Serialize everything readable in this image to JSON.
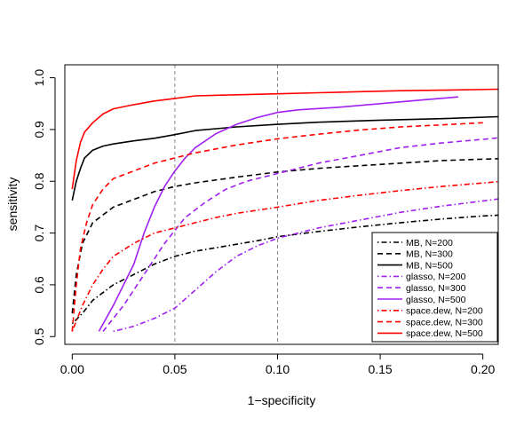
{
  "chart_data": {
    "type": "line",
    "title": "",
    "xlabel": "1−specificity",
    "ylabel": "sensitivity",
    "xlim": [
      -0.0036,
      0.2075
    ],
    "ylim": [
      0.485,
      1.025
    ],
    "xticks": [
      0.0,
      0.05,
      0.1,
      0.15,
      0.2
    ],
    "xtick_labels": [
      "0.00",
      "0.05",
      "0.10",
      "0.15",
      "0.20"
    ],
    "yticks": [
      0.5,
      0.6,
      0.7,
      0.8,
      0.9,
      1.0
    ],
    "ytick_labels": [
      "0.5",
      "0.6",
      "0.7",
      "0.8",
      "0.9",
      "1.0"
    ],
    "vlines": [
      0.05,
      0.1
    ],
    "grid": false,
    "legend_position": "bottom-right",
    "series": [
      {
        "name": "MB, N=200",
        "color": "#000000",
        "dash": "dotdash",
        "points": [
          [
            0.0,
            0.525
          ],
          [
            0.005,
            0.545
          ],
          [
            0.01,
            0.57
          ],
          [
            0.02,
            0.6
          ],
          [
            0.03,
            0.62
          ],
          [
            0.04,
            0.64
          ],
          [
            0.05,
            0.655
          ],
          [
            0.06,
            0.665
          ],
          [
            0.075,
            0.675
          ],
          [
            0.09,
            0.685
          ],
          [
            0.1,
            0.693
          ],
          [
            0.12,
            0.703
          ],
          [
            0.14,
            0.712
          ],
          [
            0.16,
            0.72
          ],
          [
            0.18,
            0.727
          ],
          [
            0.2,
            0.733
          ],
          [
            0.21,
            0.735
          ]
        ]
      },
      {
        "name": "MB, N=300",
        "color": "#000000",
        "dash": "dashed",
        "points": [
          [
            0.0,
            0.545
          ],
          [
            0.002,
            0.62
          ],
          [
            0.005,
            0.68
          ],
          [
            0.01,
            0.72
          ],
          [
            0.02,
            0.75
          ],
          [
            0.03,
            0.765
          ],
          [
            0.04,
            0.78
          ],
          [
            0.05,
            0.79
          ],
          [
            0.06,
            0.797
          ],
          [
            0.08,
            0.808
          ],
          [
            0.1,
            0.818
          ],
          [
            0.12,
            0.825
          ],
          [
            0.14,
            0.83
          ],
          [
            0.16,
            0.835
          ],
          [
            0.18,
            0.84
          ],
          [
            0.21,
            0.844
          ]
        ]
      },
      {
        "name": "MB, N=500",
        "color": "#000000",
        "dash": "solid",
        "points": [
          [
            0.0,
            0.763
          ],
          [
            0.002,
            0.8
          ],
          [
            0.004,
            0.825
          ],
          [
            0.006,
            0.845
          ],
          [
            0.01,
            0.86
          ],
          [
            0.015,
            0.868
          ],
          [
            0.02,
            0.872
          ],
          [
            0.03,
            0.878
          ],
          [
            0.04,
            0.883
          ],
          [
            0.05,
            0.89
          ],
          [
            0.06,
            0.898
          ],
          [
            0.08,
            0.905
          ],
          [
            0.1,
            0.91
          ],
          [
            0.12,
            0.914
          ],
          [
            0.15,
            0.918
          ],
          [
            0.18,
            0.921
          ],
          [
            0.21,
            0.925
          ]
        ]
      },
      {
        "name": "glasso, N=200",
        "color": "#a020f0",
        "dash": "dotdash",
        "points": [
          [
            0.02,
            0.51
          ],
          [
            0.03,
            0.52
          ],
          [
            0.04,
            0.535
          ],
          [
            0.05,
            0.555
          ],
          [
            0.06,
            0.59
          ],
          [
            0.07,
            0.625
          ],
          [
            0.08,
            0.655
          ],
          [
            0.09,
            0.675
          ],
          [
            0.1,
            0.69
          ],
          [
            0.12,
            0.71
          ],
          [
            0.14,
            0.725
          ],
          [
            0.16,
            0.74
          ],
          [
            0.18,
            0.752
          ],
          [
            0.2,
            0.762
          ],
          [
            0.21,
            0.767
          ]
        ]
      },
      {
        "name": "glasso, N=300",
        "color": "#a020f0",
        "dash": "dashed",
        "points": [
          [
            0.015,
            0.51
          ],
          [
            0.025,
            0.56
          ],
          [
            0.035,
            0.62
          ],
          [
            0.045,
            0.68
          ],
          [
            0.055,
            0.73
          ],
          [
            0.065,
            0.76
          ],
          [
            0.075,
            0.785
          ],
          [
            0.085,
            0.8
          ],
          [
            0.1,
            0.815
          ],
          [
            0.12,
            0.835
          ],
          [
            0.14,
            0.85
          ],
          [
            0.16,
            0.865
          ],
          [
            0.18,
            0.874
          ],
          [
            0.2,
            0.881
          ],
          [
            0.21,
            0.885
          ]
        ]
      },
      {
        "name": "glasso, N=500",
        "color": "#a020f0",
        "dash": "solid",
        "points": [
          [
            0.013,
            0.51
          ],
          [
            0.02,
            0.56
          ],
          [
            0.03,
            0.64
          ],
          [
            0.035,
            0.7
          ],
          [
            0.04,
            0.75
          ],
          [
            0.045,
            0.79
          ],
          [
            0.05,
            0.82
          ],
          [
            0.055,
            0.845
          ],
          [
            0.06,
            0.865
          ],
          [
            0.07,
            0.892
          ],
          [
            0.08,
            0.91
          ],
          [
            0.09,
            0.923
          ],
          [
            0.1,
            0.933
          ],
          [
            0.11,
            0.938
          ],
          [
            0.13,
            0.943
          ],
          [
            0.15,
            0.95
          ],
          [
            0.17,
            0.957
          ],
          [
            0.188,
            0.963
          ]
        ]
      },
      {
        "name": "space.dew, N=200",
        "color": "#ff0000",
        "dash": "dotdash",
        "points": [
          [
            0.0,
            0.51
          ],
          [
            0.005,
            0.56
          ],
          [
            0.01,
            0.6
          ],
          [
            0.015,
            0.63
          ],
          [
            0.02,
            0.655
          ],
          [
            0.03,
            0.68
          ],
          [
            0.04,
            0.7
          ],
          [
            0.05,
            0.71
          ],
          [
            0.06,
            0.72
          ],
          [
            0.07,
            0.73
          ],
          [
            0.08,
            0.738
          ],
          [
            0.1,
            0.75
          ],
          [
            0.12,
            0.763
          ],
          [
            0.14,
            0.773
          ],
          [
            0.16,
            0.782
          ],
          [
            0.18,
            0.79
          ],
          [
            0.21,
            0.8
          ]
        ]
      },
      {
        "name": "space.dew, N=300",
        "color": "#ff0000",
        "dash": "dashed",
        "points": [
          [
            0.0,
            0.51
          ],
          [
            0.002,
            0.6
          ],
          [
            0.004,
            0.67
          ],
          [
            0.007,
            0.72
          ],
          [
            0.01,
            0.755
          ],
          [
            0.015,
            0.785
          ],
          [
            0.02,
            0.805
          ],
          [
            0.03,
            0.82
          ],
          [
            0.04,
            0.835
          ],
          [
            0.05,
            0.845
          ],
          [
            0.06,
            0.855
          ],
          [
            0.08,
            0.87
          ],
          [
            0.1,
            0.882
          ],
          [
            0.12,
            0.891
          ],
          [
            0.14,
            0.899
          ],
          [
            0.16,
            0.905
          ],
          [
            0.18,
            0.909
          ],
          [
            0.2,
            0.913
          ]
        ]
      },
      {
        "name": "space.dew, N=500",
        "color": "#ff0000",
        "dash": "solid",
        "points": [
          [
            0.0,
            0.785
          ],
          [
            0.002,
            0.84
          ],
          [
            0.004,
            0.875
          ],
          [
            0.006,
            0.895
          ],
          [
            0.01,
            0.913
          ],
          [
            0.015,
            0.93
          ],
          [
            0.02,
            0.94
          ],
          [
            0.03,
            0.948
          ],
          [
            0.04,
            0.955
          ],
          [
            0.05,
            0.96
          ],
          [
            0.06,
            0.965
          ],
          [
            0.08,
            0.967
          ],
          [
            0.1,
            0.969
          ],
          [
            0.12,
            0.971
          ],
          [
            0.14,
            0.973
          ],
          [
            0.16,
            0.975
          ],
          [
            0.18,
            0.976
          ],
          [
            0.21,
            0.978
          ]
        ]
      }
    ]
  }
}
